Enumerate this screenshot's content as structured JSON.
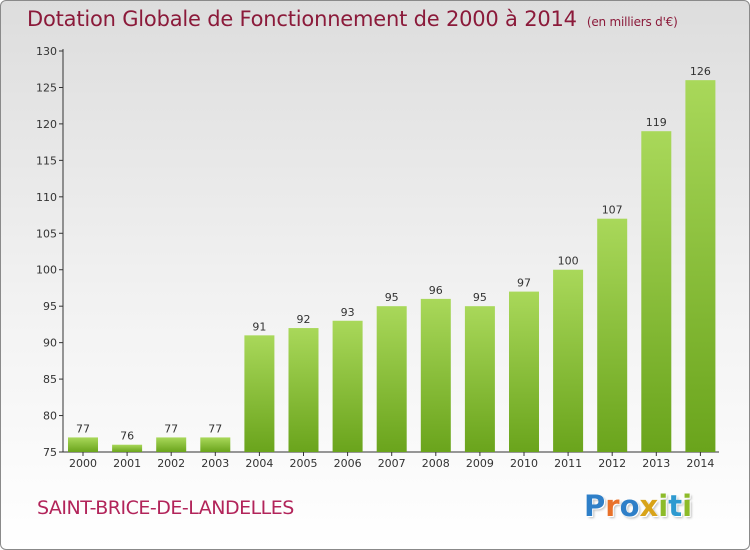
{
  "title": "Dotation Globale de Fonctionnement de 2000 à 2014",
  "unit": "(en milliers d'€)",
  "commune": "SAINT-BRICE-DE-LANDELLES",
  "logo_text": "Proxiti",
  "colors": {
    "title": "#8b1a3a",
    "commune": "#b2245a",
    "bar_light": "#a9d85a",
    "bar_dark": "#6aa41c",
    "logo": [
      "#2e7fc8",
      "#e8712a",
      "#2e7fc8",
      "#d8a319",
      "#8dbb2a",
      "#2e9ad0",
      "#8dbb2a"
    ]
  },
  "chart_data": {
    "type": "bar",
    "title": "Dotation Globale de Fonctionnement de 2000 à 2014",
    "subtitle": "(en milliers d'€)",
    "categories": [
      "2000",
      "2001",
      "2002",
      "2003",
      "2004",
      "2005",
      "2006",
      "2007",
      "2008",
      "2009",
      "2010",
      "2011",
      "2012",
      "2013",
      "2014"
    ],
    "values": [
      77,
      76,
      77,
      77,
      91,
      92,
      93,
      95,
      96,
      95,
      97,
      100,
      107,
      119,
      126
    ],
    "ylim": [
      75,
      130
    ],
    "yticks": [
      75,
      80,
      85,
      90,
      95,
      100,
      105,
      110,
      115,
      120,
      125,
      130
    ],
    "grid": false,
    "legend": "none"
  }
}
